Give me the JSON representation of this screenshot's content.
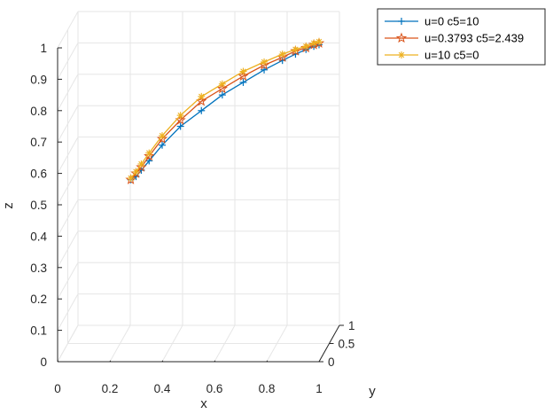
{
  "chart_data": {
    "type": "line",
    "view": "3d",
    "xlabel": "x",
    "ylabel": "y",
    "zlabel": "z",
    "xlim": [
      0,
      1
    ],
    "ylim": [
      0,
      1
    ],
    "zlim": [
      0,
      1
    ],
    "xticks": [
      "0",
      "0.2",
      "0.4",
      "0.6",
      "0.8",
      "1"
    ],
    "yticks": [
      "0",
      "0.5",
      "1"
    ],
    "zticks": [
      "0",
      "0.1",
      "0.2",
      "0.3",
      "0.4",
      "0.5",
      "0.6",
      "0.7",
      "0.8",
      "0.9",
      "1"
    ],
    "grid": true,
    "legend": "top-right",
    "series": [
      {
        "name": "u=0 c5=10",
        "color": "#0072BD",
        "marker": "plus",
        "x": [
          0.28,
          0.3,
          0.32,
          0.35,
          0.4,
          0.47,
          0.55,
          0.63,
          0.71,
          0.79,
          0.86,
          0.91,
          0.95,
          0.98,
          1.0
        ],
        "y": [
          0.0,
          0.0,
          0.0,
          0.0,
          0.0,
          0.0,
          0.0,
          0.0,
          0.0,
          0.0,
          0.0,
          0.0,
          0.0,
          0.0,
          0.0
        ],
        "z": [
          0.58,
          0.59,
          0.61,
          0.64,
          0.69,
          0.75,
          0.8,
          0.85,
          0.89,
          0.93,
          0.96,
          0.98,
          0.995,
          1.005,
          1.01
        ]
      },
      {
        "name": "u=0.3793  c5=2.439",
        "color": "#D95319",
        "marker": "pentagram",
        "x": [
          0.28,
          0.3,
          0.32,
          0.35,
          0.4,
          0.47,
          0.55,
          0.63,
          0.71,
          0.79,
          0.86,
          0.91,
          0.95,
          0.98,
          1.0
        ],
        "y": [
          0.0,
          0.0,
          0.0,
          0.0,
          0.0,
          0.0,
          0.0,
          0.0,
          0.0,
          0.0,
          0.0,
          0.0,
          0.0,
          0.0,
          0.0
        ],
        "z": [
          0.58,
          0.6,
          0.62,
          0.655,
          0.71,
          0.77,
          0.83,
          0.87,
          0.91,
          0.945,
          0.97,
          0.99,
          1.0,
          1.01,
          1.015
        ]
      },
      {
        "name": "u=10 c5=0",
        "color": "#EDB120",
        "marker": "asterisk",
        "x": [
          0.28,
          0.3,
          0.32,
          0.35,
          0.4,
          0.47,
          0.55,
          0.63,
          0.71,
          0.79,
          0.86,
          0.91,
          0.95,
          0.98,
          1.0
        ],
        "y": [
          0.0,
          0.0,
          0.0,
          0.0,
          0.0,
          0.0,
          0.0,
          0.0,
          0.0,
          0.0,
          0.0,
          0.0,
          0.0,
          0.0,
          0.0
        ],
        "z": [
          0.585,
          0.605,
          0.63,
          0.665,
          0.72,
          0.785,
          0.845,
          0.885,
          0.925,
          0.955,
          0.98,
          0.995,
          1.005,
          1.015,
          1.02
        ]
      }
    ]
  }
}
